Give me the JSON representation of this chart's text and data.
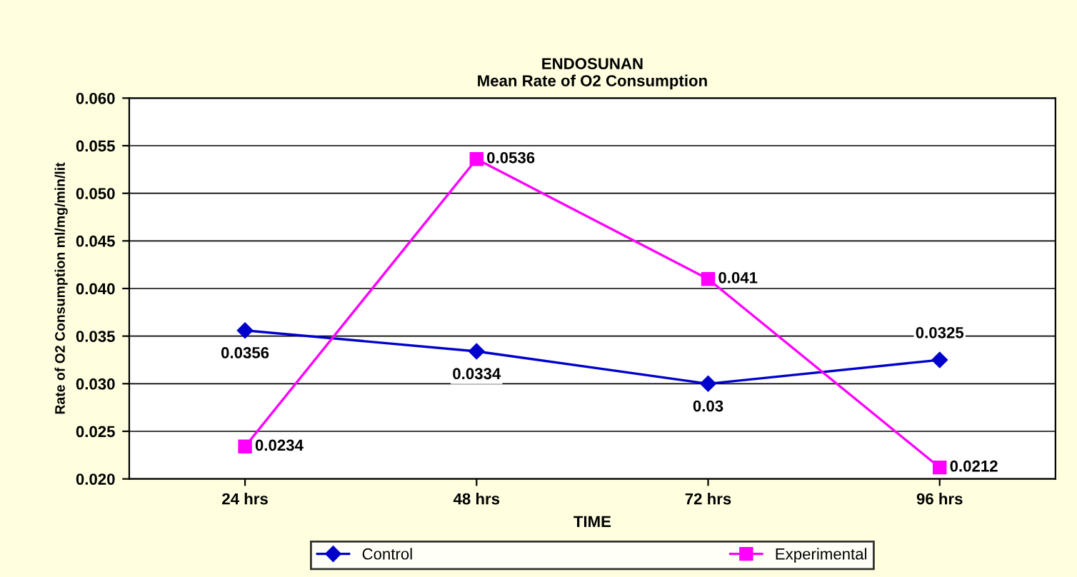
{
  "chart_data": {
    "type": "line",
    "title": "ENDOSUNAN\nMean Rate of O2 Consumption",
    "xlabel": "TIME",
    "ylabel": "Rate of O2 Consumption ml/mg/min/lit",
    "categories": [
      "24 hrs",
      "48 hrs",
      "72 hrs",
      "96 hrs"
    ],
    "series": [
      {
        "name": "Control",
        "color": "#0000cc",
        "marker": "diamond",
        "values": [
          0.0356,
          0.0334,
          0.03,
          0.0325
        ]
      },
      {
        "name": "Experimental",
        "color": "#ff00ff",
        "marker": "square",
        "values": [
          0.0234,
          0.0536,
          0.041,
          0.0212
        ]
      }
    ],
    "ylim": [
      0.02,
      0.06
    ],
    "yticks": [
      "0.020",
      "0.025",
      "0.030",
      "0.035",
      "0.040",
      "0.045",
      "0.050",
      "0.055",
      "0.060"
    ],
    "grid": "y",
    "legend": "bottom",
    "data_labels": true,
    "line_style": "solid"
  }
}
